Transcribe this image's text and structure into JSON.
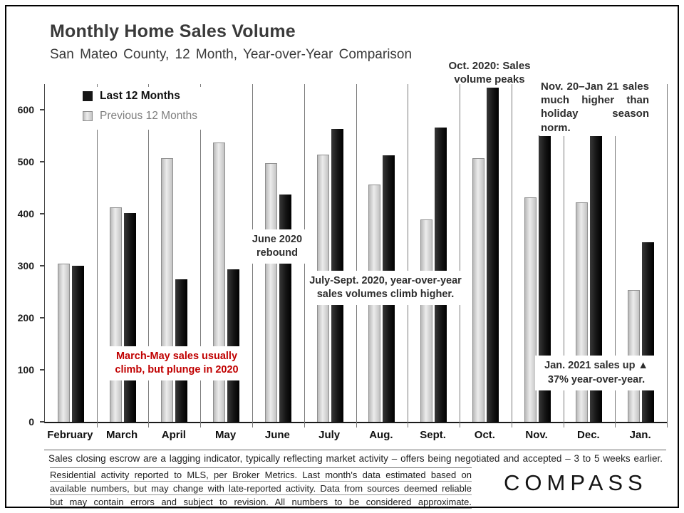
{
  "chart_data": {
    "type": "bar",
    "title": "Monthly Home Sales Volume",
    "subtitle": "San Mateo County, 12 Month, Year-over-Year Comparison",
    "categories": [
      "February",
      "March",
      "April",
      "May",
      "June",
      "July",
      "Aug.",
      "Sept.",
      "Oct.",
      "Nov.",
      "Dec.",
      "Jan."
    ],
    "series": [
      {
        "name": "Last 12 Months",
        "color": "#1a1a1a",
        "values": [
          300,
          402,
          274,
          293,
          437,
          563,
          513,
          567,
          643,
          551,
          557,
          346
        ]
      },
      {
        "name": "Previous 12 Months",
        "color": "#d8d8d8",
        "border_color": "#8f8f8f",
        "values": [
          305,
          413,
          508,
          537,
          498,
          514,
          457,
          390,
          508,
          432,
          422,
          254
        ]
      }
    ],
    "legend_order": [
      "Last 12 Months",
      "Previous 12 Months"
    ],
    "bar_draw_order": [
      "Previous 12 Months",
      "Last 12 Months"
    ],
    "ylim": [
      0,
      650
    ],
    "yticks": [
      0,
      100,
      200,
      300,
      400,
      500,
      600
    ],
    "grid": "vertical category separators only",
    "legend_position": "top-left inside plot",
    "annotations": {
      "oct_peak": "Oct. 2020: Sales volume peaks",
      "nov_jan": "Nov. 20–Jan 21 sales much higher than holiday season norm.",
      "june_rebound": "June 2020 rebound",
      "july_sept": "July-Sept. 2020, year-over-year sales volumes climb higher.",
      "march_may": "March-May sales usually climb, but plunge in 2020",
      "jan_up": "Jan. 2021 sales up ▲ 37% year-over-year."
    }
  },
  "footer": {
    "note1": "Sales closing escrow are a lagging indicator, typically reflecting market activity – offers being negotiated and accepted – 3 to 5 weeks earlier.",
    "note2_lines": [
      "Residential activity reported to MLS, per Broker Metrics. Last month's data estimated based on",
      "available numbers, but may change with late-reported activity. Data from sources deemed reliable",
      "but may contain errors and subject to revision. All numbers to be considered approximate."
    ],
    "brand": "COMPASS"
  }
}
